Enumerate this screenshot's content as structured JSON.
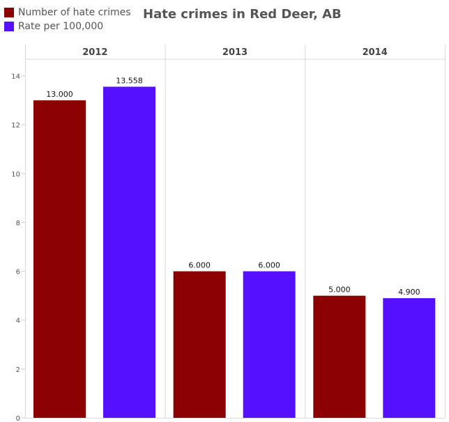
{
  "chart_data": {
    "type": "bar",
    "title": "Hate crimes in Red Deer, AB",
    "xlabel": "",
    "ylabel": "",
    "categories": [
      "2012",
      "2013",
      "2014"
    ],
    "series": [
      {
        "name": "Number of hate crimes",
        "color": "#8b0000",
        "values": [
          13.0,
          6.0,
          5.0
        ],
        "labels": [
          "13.000",
          "6.000",
          "5.000"
        ]
      },
      {
        "name": "Rate per 100,000",
        "color": "#5511ff",
        "values": [
          13.558,
          6.0,
          4.9
        ],
        "labels": [
          "13.558",
          "6.000",
          "4.900"
        ]
      }
    ],
    "ylim": [
      0,
      14
    ],
    "yticks": [
      0,
      2,
      4,
      6,
      8,
      10,
      12,
      14
    ],
    "ytick_labels": [
      "0",
      "2",
      "4",
      "6",
      "8",
      "10",
      "12",
      "14"
    ],
    "grid": false,
    "legend_position": "top-left"
  }
}
